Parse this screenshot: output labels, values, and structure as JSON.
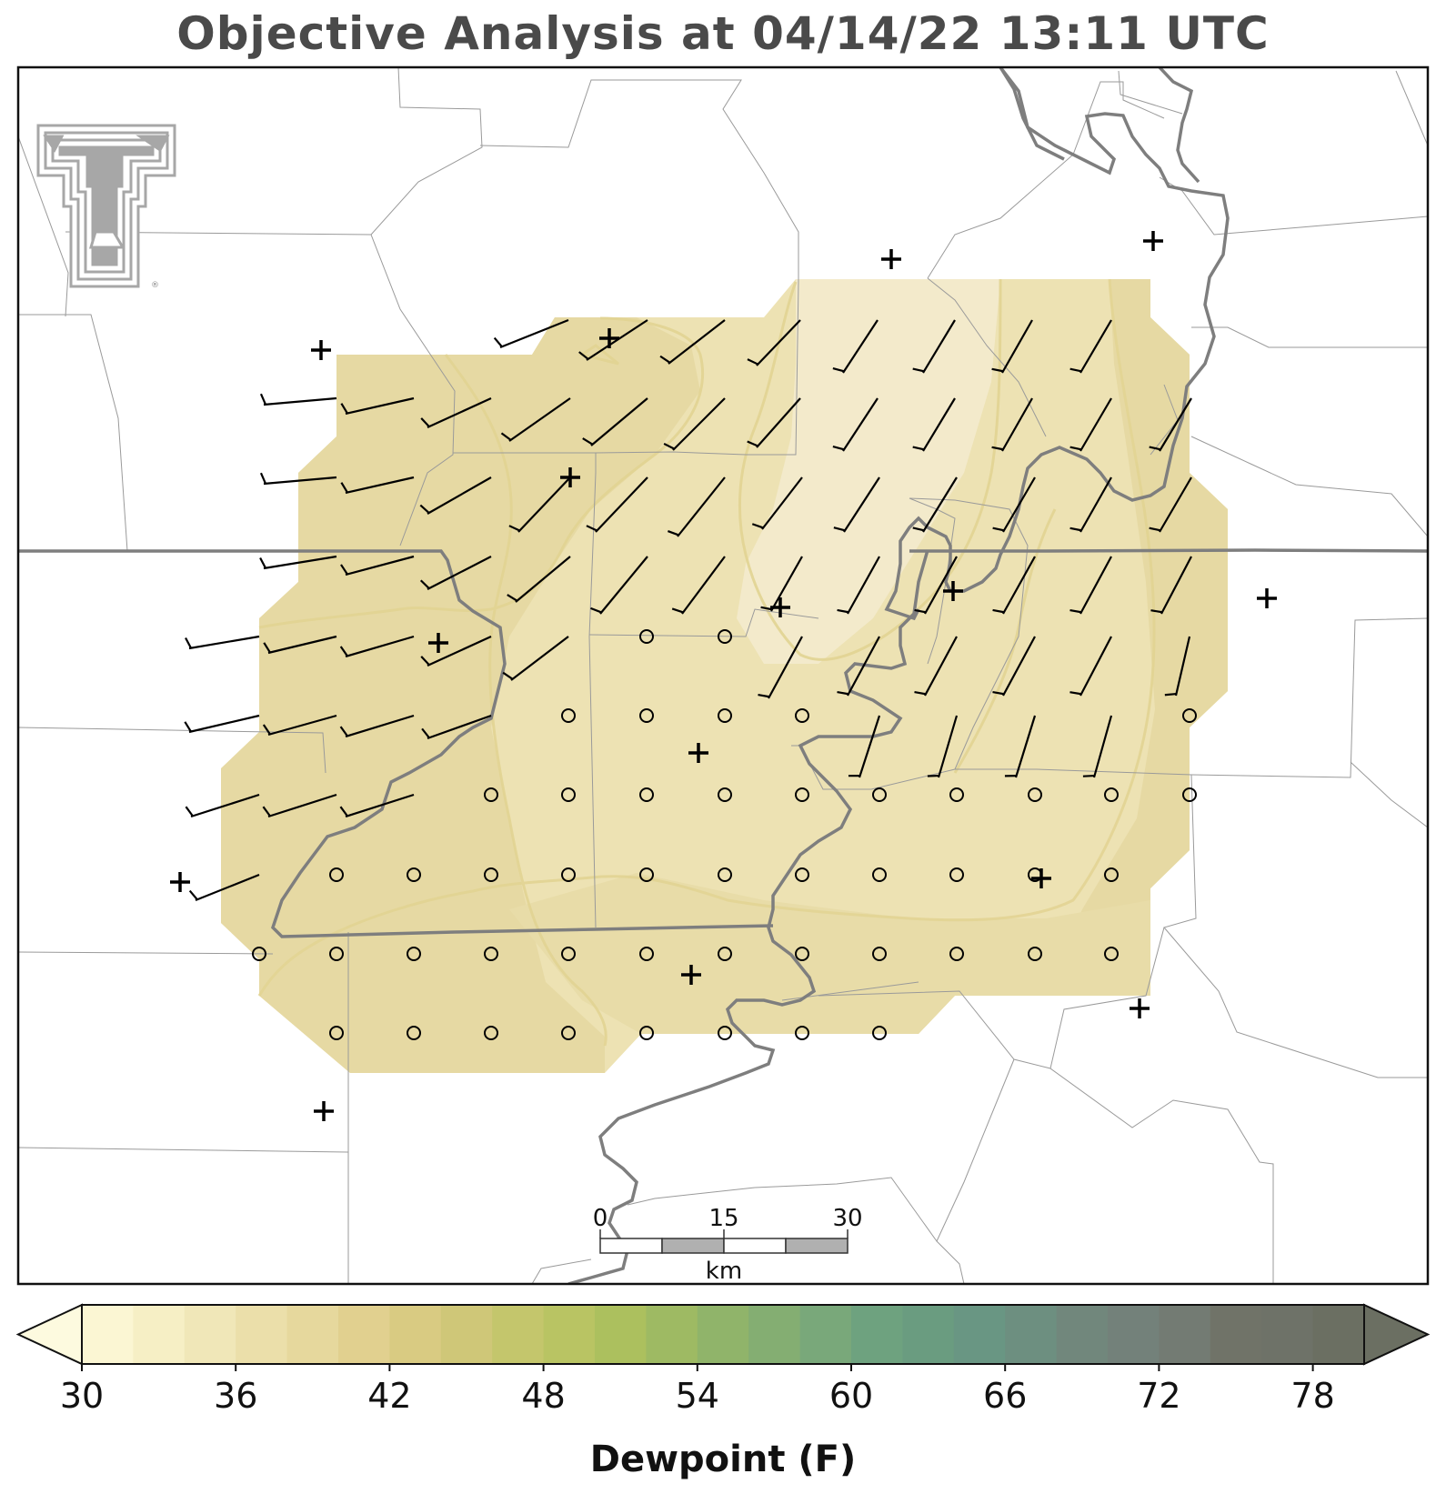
{
  "title": "Objective Analysis at 04/14/22 13:11 UTC",
  "logo": {
    "name": "texas-tech-double-t-logo",
    "mark": "®"
  },
  "scale_bar": {
    "ticks": [
      "0",
      "15",
      "30"
    ],
    "unit": "km"
  },
  "colorbar": {
    "label": "Dewpoint (F)",
    "min": 30,
    "max": 80,
    "step": 2,
    "tick_labels": [
      "30",
      "36",
      "42",
      "48",
      "54",
      "60",
      "66",
      "72",
      "78"
    ],
    "colors": [
      "#fbf6d3",
      "#f6efc5",
      "#f0e7b8",
      "#ebdfaa",
      "#e6d89d",
      "#e1d08f",
      "#d9cb82",
      "#cfc778",
      "#c4c66c",
      "#b9c463",
      "#acc05e",
      "#9eba63",
      "#90b46a",
      "#84ae72",
      "#79a87a",
      "#6ea27f",
      "#6a9c80",
      "#699683",
      "#6d8f80",
      "#71877c",
      "#73817a",
      "#737b73",
      "#707368",
      "#6e7268",
      "#6b6f62"
    ]
  },
  "station_plots": {
    "station_markers": "plus",
    "grid_marker": "circle (calm)",
    "barb_marker": "wind barb"
  },
  "colors": {
    "boundary": "#7a7a7a",
    "county_line": "#9a9a9a",
    "contour": "#e2d493",
    "barb": "#000000"
  }
}
